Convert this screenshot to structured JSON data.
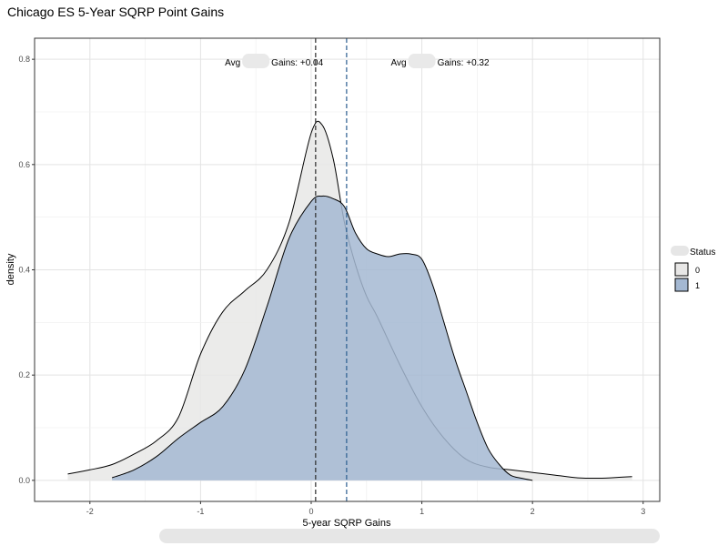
{
  "chart_data": {
    "type": "area",
    "title": "Chicago ES 5-Year SQRP Point Gains",
    "xlabel": "5-year SQRP Gains",
    "ylabel": "density",
    "xlim": [
      -2.5,
      3.15
    ],
    "ylim": [
      -0.04,
      0.84
    ],
    "xticks": [
      -2,
      -1,
      0,
      1,
      2,
      3
    ],
    "yticks": [
      0.0,
      0.2,
      0.4,
      0.6,
      0.8
    ],
    "xtick_labels": [
      "-2",
      "-1",
      "0",
      "1",
      "2",
      "3"
    ],
    "ytick_labels": [
      "0.0",
      "0.2",
      "0.4",
      "0.6",
      "0.8"
    ],
    "grid": true,
    "legend": {
      "title": "Status",
      "placement": "right"
    },
    "series": [
      {
        "name": "0",
        "color": "#e8e7e6",
        "x": [
          -2.2,
          -2.0,
          -1.8,
          -1.6,
          -1.4,
          -1.2,
          -1.0,
          -0.8,
          -0.6,
          -0.4,
          -0.2,
          0.0,
          0.1,
          0.2,
          0.3,
          0.4,
          0.5,
          0.6,
          0.8,
          1.0,
          1.2,
          1.4,
          1.6,
          1.8,
          2.0,
          2.2,
          2.4,
          2.6,
          2.8,
          2.9
        ],
        "y": [
          0.012,
          0.02,
          0.03,
          0.05,
          0.075,
          0.12,
          0.24,
          0.32,
          0.36,
          0.4,
          0.49,
          0.66,
          0.675,
          0.61,
          0.49,
          0.41,
          0.35,
          0.31,
          0.22,
          0.14,
          0.08,
          0.04,
          0.025,
          0.02,
          0.015,
          0.01,
          0.005,
          0.004,
          0.006,
          0.007
        ]
      },
      {
        "name": "1",
        "color": "#a4b8d2",
        "x": [
          -1.8,
          -1.6,
          -1.4,
          -1.2,
          -1.0,
          -0.8,
          -0.6,
          -0.4,
          -0.2,
          0.0,
          0.1,
          0.2,
          0.3,
          0.4,
          0.5,
          0.6,
          0.7,
          0.8,
          0.9,
          1.0,
          1.1,
          1.2,
          1.3,
          1.4,
          1.5,
          1.6,
          1.7,
          1.8,
          1.9,
          2.0
        ],
        "y": [
          0.005,
          0.02,
          0.045,
          0.08,
          0.11,
          0.14,
          0.21,
          0.33,
          0.46,
          0.53,
          0.54,
          0.535,
          0.52,
          0.47,
          0.44,
          0.43,
          0.425,
          0.43,
          0.43,
          0.42,
          0.37,
          0.3,
          0.23,
          0.17,
          0.11,
          0.06,
          0.03,
          0.01,
          0.004,
          0.0
        ]
      }
    ],
    "reference_lines": [
      {
        "series": "0",
        "x": 0.04,
        "color": "#2b2b2b"
      },
      {
        "series": "1",
        "x": 0.32,
        "color": "#2a5d8f"
      }
    ],
    "annotations": [
      {
        "id": "avg0",
        "x": -0.5,
        "y": 0.795,
        "prefix": "Avg",
        "suffix": "Gains: +0.04"
      },
      {
        "id": "avg1",
        "x": 1.0,
        "y": 0.795,
        "prefix": "Avg",
        "suffix": "Gains: +0.32"
      }
    ]
  }
}
